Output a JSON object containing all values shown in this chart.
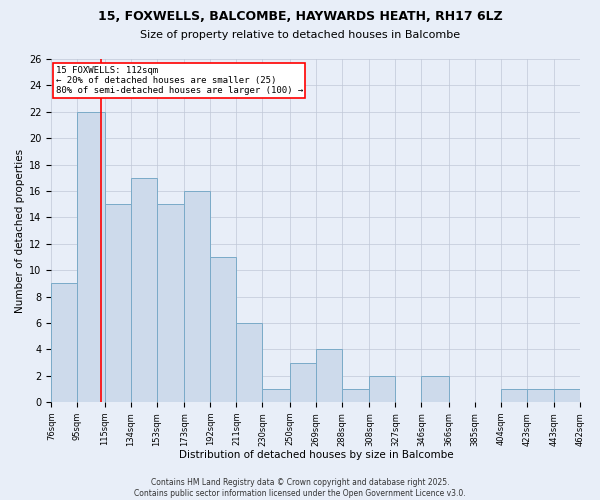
{
  "title_line1": "15, FOXWELLS, BALCOMBE, HAYWARDS HEATH, RH17 6LZ",
  "title_line2": "Size of property relative to detached houses in Balcombe",
  "xlabel": "Distribution of detached houses by size in Balcombe",
  "ylabel": "Number of detached properties",
  "bin_labels": [
    "76sqm",
    "95sqm",
    "115sqm",
    "134sqm",
    "153sqm",
    "173sqm",
    "192sqm",
    "211sqm",
    "230sqm",
    "250sqm",
    "269sqm",
    "288sqm",
    "308sqm",
    "327sqm",
    "346sqm",
    "366sqm",
    "385sqm",
    "404sqm",
    "423sqm",
    "443sqm",
    "462sqm"
  ],
  "bin_edges": [
    76,
    95,
    115,
    134,
    153,
    173,
    192,
    211,
    230,
    250,
    269,
    288,
    308,
    327,
    346,
    366,
    385,
    404,
    423,
    443,
    462
  ],
  "bar_heights": [
    9,
    22,
    15,
    17,
    15,
    16,
    11,
    6,
    1,
    3,
    4,
    1,
    2,
    0,
    2,
    0,
    0,
    1,
    1,
    1
  ],
  "bar_facecolor": "#cddaeb",
  "bar_edgecolor": "#7aaac8",
  "bar_linewidth": 0.7,
  "vline_x": 112,
  "vline_color": "red",
  "vline_linewidth": 1.2,
  "annotation_text": "15 FOXWELLS: 112sqm\n← 20% of detached houses are smaller (25)\n80% of semi-detached houses are larger (100) →",
  "annotation_box_edgecolor": "red",
  "annotation_box_facecolor": "white",
  "annotation_fontsize": 6.5,
  "ylim": [
    0,
    26
  ],
  "yticks": [
    0,
    2,
    4,
    6,
    8,
    10,
    12,
    14,
    16,
    18,
    20,
    22,
    24,
    26
  ],
  "background_color": "#e8eef8",
  "plot_background_color": "#e8eef8",
  "grid_color": "#c0c8d8",
  "title_fontsize1": 9,
  "title_fontsize2": 8,
  "ylabel_fontsize": 7.5,
  "xlabel_fontsize": 7.5,
  "ytick_fontsize": 7,
  "xtick_fontsize": 6,
  "footer_text": "Contains HM Land Registry data © Crown copyright and database right 2025.\nContains public sector information licensed under the Open Government Licence v3.0.",
  "footer_fontsize": 5.5
}
